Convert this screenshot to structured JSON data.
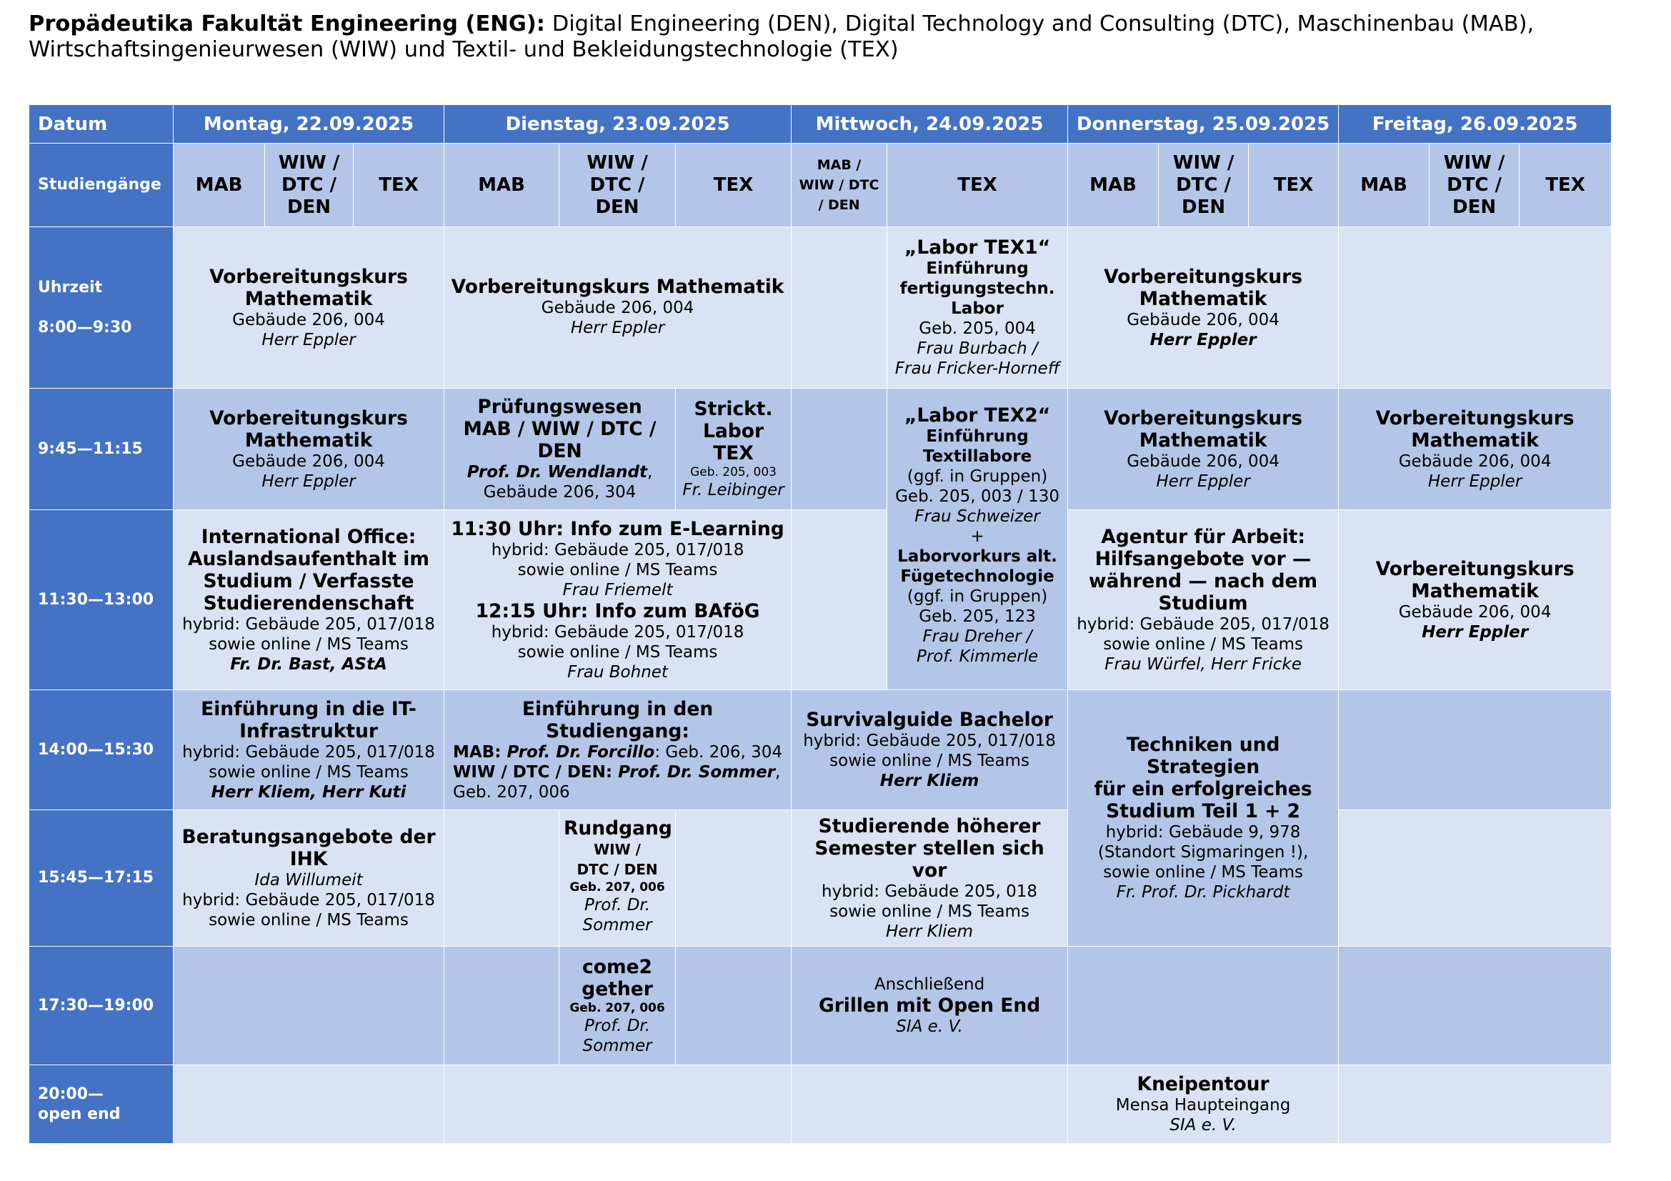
{
  "title": {
    "bold": "Propädeutika Fakultät Engineering (ENG):",
    "rest": " Digital Engineering (DEN), Digital Technology and Consulting (DTC), Maschinenbau (MAB), Wirtschaftsingenieurwesen (WIW) und Textil- und Bekleidungstechnologie (TEX)"
  },
  "header": {
    "datum": "Datum",
    "days": [
      "Montag, 22.09.2025",
      "Dienstag, 23.09.2025",
      "Mittwoch, 24.09.2025",
      "Donnerstag, 25.09.2025",
      "Freitag, 26.09.2025"
    ],
    "studiengaenge": "Studiengänge",
    "mab": "MAB",
    "wiw": "WIW /",
    "dtc": "DTC /",
    "den": "DEN",
    "tex": "TEX",
    "mi_l1": "MAB /",
    "mi_l2": "WIW / DTC",
    "mi_l3": "/ DEN"
  },
  "times": {
    "uhrzeit": "Uhrzeit",
    "t1": "8:00—9:30",
    "t2": "9:45—11:15",
    "t3": "11:30—13:00",
    "t4": "14:00—15:30",
    "t5": "15:45—17:15",
    "t6": "17:30—19:00",
    "t7a": "20:00—",
    "t7b": "open end"
  },
  "courses": {
    "vk1": "Vorbereitungskurs",
    "vk2": "Mathematik",
    "vk_full": "Vorbereitungskurs Mathematik",
    "room206": "Gebäude 206, 004",
    "eppler": "Herr Eppler",
    "tex1_a": "„Labor TEX1“",
    "tex1_b": "Einführung",
    "tex1_c": "fertigungstechn.",
    "tex1_d": "Labor",
    "tex1_e": "Geb. 205, 004",
    "tex1_f": "Frau Burbach /",
    "tex1_g": "Frau Fricker-Horneff",
    "pw_a": "Prüfungswesen",
    "pw_b": "MAB / WIW / DTC / DEN",
    "pw_c": "Prof. Dr. Wendlandt",
    "pw_c2": ",",
    "pw_d": "Gebäude 206, 304",
    "sl_a": "Strickt.",
    "sl_b": "Labor TEX",
    "sl_c": "Geb. 205, 003",
    "sl_d": "Fr. Leibinger",
    "tex2_a": "„Labor TEX2“",
    "tex2_b": "Einführung",
    "tex2_c": "Textillabore",
    "tex2_d": "(ggf. in Gruppen)",
    "tex2_e": "Geb. 205, 003 / 130",
    "tex2_f": "Frau Schweizer",
    "tex2_g": "+",
    "tex2_h": "Laborvorkurs alt.",
    "tex2_i": "Fügetechnologie",
    "tex2_j": "(ggf. in Gruppen)",
    "tex2_k": "Geb. 205, 123",
    "tex2_l": "Frau Dreher /",
    "tex2_m": "Prof. Kimmerle",
    "io_a": "International Office:",
    "io_b": "Auslandsaufenthalt im",
    "io_c": "Studium / Verfasste",
    "io_d": "Studierendenschaft",
    "hyb205": "hybrid: Gebäude 205, 017/018",
    "hyb205b": "hybrid:  Gebäude 205, 017/018",
    "online": "sowie online / MS Teams",
    "io_e": "Fr. Dr. Bast, AStA",
    "el_a": "11:30 Uhr: Info zum E-Learning",
    "el_b": "Frau Friemelt",
    "bf_a": "12:15 Uhr: Info zum BAföG",
    "bf_b": "Frau Bohnet",
    "aa_a": "Agentur für Arbeit:",
    "aa_b": "Hilfsangebote vor —",
    "aa_c": "während — nach dem",
    "aa_d": "Studium",
    "aa_e": "Frau Würfel, Herr Fricke",
    "it_a": "Einführung in die IT-",
    "it_b": "Infrastruktur",
    "it_c": "Herr Kliem, Herr Kuti",
    "es_a": "Einführung in den Studiengang:",
    "es_b1": "MAB: ",
    "es_b2": "Prof. Dr. Forcillo",
    "es_b3": ": Geb. 206, 304",
    "es_c1": "WIW / DTC / DEN: ",
    "es_c2": "Prof. Dr. Sommer",
    "es_c3": ",",
    "es_d": "Geb. 207, 006",
    "sg_a": "Survivalguide Bachelor",
    "kliem": "Herr Kliem",
    "ts_a": "Techniken und Strategien",
    "ts_b": "für ein erfolgreiches",
    "ts_c": "Studium Teil 1 + 2",
    "ts_d": "hybrid: Gebäude 9, 978",
    "ts_e": "(Standort Sigmaringen !),",
    "ts_f": "sowie online / MS Teams",
    "ts_g": "Fr. Prof. Dr. Pickhardt",
    "ihk_a": "Beratungsangebote der IHK",
    "ihk_b": "Ida Willumeit",
    "rg_a": "Rundgang",
    "rg_b": "WIW /",
    "rg_c": "DTC / DEN",
    "rg_d": "Geb. 207, 006",
    "prof_a": "Prof. Dr.",
    "prof_b": "Sommer",
    "sh_a": "Studierende höherer",
    "sh_b": "Semester stellen sich vor",
    "sh_c": "hybrid: Gebäude 205, 018",
    "c2_a": "come2",
    "c2_b": "gether",
    "gr_a": "Anschließend",
    "gr_b": "Grillen mit Open End",
    "sia": "SIA e. V.",
    "kn_a": "Kneipentour",
    "kn_b": "Mensa Haupteingang"
  }
}
